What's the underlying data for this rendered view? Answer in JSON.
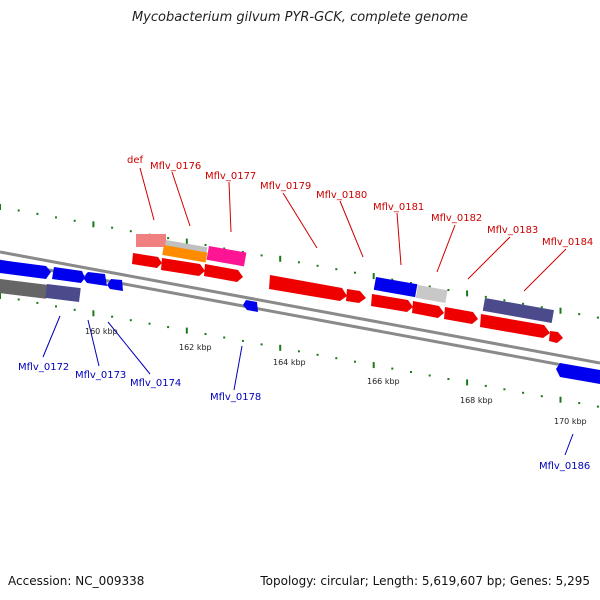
{
  "title": "Mycobacterium gilvum PYR-GCK, complete genome",
  "footer": {
    "accession": "Accession: NC_009338",
    "summary": "Topology: circular; Length: 5,619,607 bp; Genes: 5,295"
  },
  "colors": {
    "forward_label": "#cc0000",
    "reverse_label": "#0000bb",
    "backbone": "#8a8a8a",
    "tick_green": "#1a7a1a"
  },
  "ticks": [
    {
      "label": "160 kbp"
    },
    {
      "label": "162 kbp"
    },
    {
      "label": "164 kbp"
    },
    {
      "label": "166 kbp"
    },
    {
      "label": "168 kbp"
    },
    {
      "label": "170 kbp"
    }
  ],
  "genes_top": [
    {
      "label": "def"
    },
    {
      "label": "Mflv_0176"
    },
    {
      "label": "Mflv_0177"
    },
    {
      "label": "Mflv_0179"
    },
    {
      "label": "Mflv_0180"
    },
    {
      "label": "Mflv_0181"
    },
    {
      "label": "Mflv_0182"
    },
    {
      "label": "Mflv_0183"
    },
    {
      "label": "Mflv_0184"
    }
  ],
  "genes_bottom": [
    {
      "label": "Mflv_0172"
    },
    {
      "label": "Mflv_0173"
    },
    {
      "label": "Mflv_0174"
    },
    {
      "label": "Mflv_0178"
    },
    {
      "label": "Mflv_0186"
    }
  ]
}
